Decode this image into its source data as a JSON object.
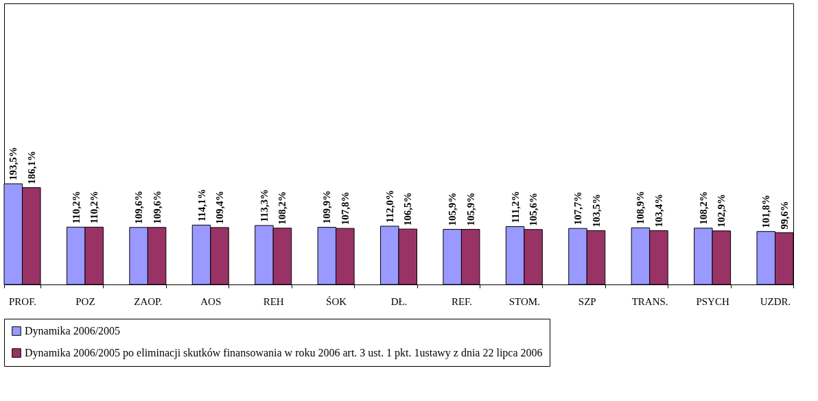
{
  "chart_data": {
    "type": "bar",
    "categories": [
      "PROF.",
      "POZ",
      "ZAOP.",
      "AOS",
      "REH",
      "ŚOK",
      "DŁ.",
      "REF.",
      "STOM.",
      "SZP",
      "TRANS.",
      "PSYCH",
      "UZDR."
    ],
    "series": [
      {
        "name": "Dynamika 2006/2005",
        "color": "#9999ff",
        "values": [
          193.5,
          110.2,
          109.6,
          114.1,
          113.3,
          109.9,
          112.0,
          105.9,
          111.2,
          107.7,
          108.9,
          108.2,
          101.8
        ],
        "value_labels": [
          "193,5%",
          "110,2%",
          "109,6%",
          "114,1%",
          "113,3%",
          "109,9%",
          "112,0%",
          "105,9%",
          "111,2%",
          "107,7%",
          "108,9%",
          "108,2%",
          "101,8%"
        ]
      },
      {
        "name": "Dynamika 2006/2005 po eliminacji skutków finansowania w roku 2006 art. 3 ust. 1 pkt. 1ustawy z dnia 22 lipca 2006",
        "color": "#993366",
        "values": [
          186.1,
          110.2,
          109.6,
          109.4,
          108.2,
          107.8,
          106.5,
          105.9,
          105.6,
          103.5,
          103.4,
          102.9,
          99.6
        ],
        "value_labels": [
          "186,1%",
          "110,2%",
          "109,6%",
          "109,4%",
          "108,2%",
          "107,8%",
          "106,5%",
          "105,9%",
          "105,6%",
          "103,5%",
          "103,4%",
          "102,9%",
          "99,6%"
        ]
      }
    ],
    "ylim": [
      0,
      540
    ],
    "grid": false,
    "legend": "bottom"
  }
}
